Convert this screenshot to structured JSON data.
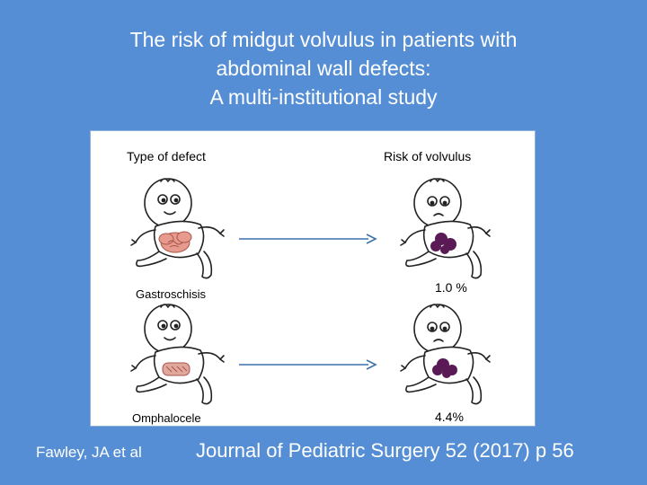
{
  "title": {
    "line1": "The risk of midgut volvulus in patients with",
    "line2": "abdominal wall defects:",
    "line3": "A multi-institutional study"
  },
  "panel": {
    "header_left": "Type of defect",
    "header_right": "Risk of volvulus",
    "rows": [
      {
        "defect": "Gastroschisis",
        "risk": "1.0 %"
      },
      {
        "defect": "Omphalocele",
        "risk": "4.4%"
      }
    ]
  },
  "citation": {
    "authors": "Fawley, JA et al",
    "journal": "Journal of Pediatric Surgery 52 (2017) p 56"
  },
  "colors": {
    "background": "#558ed5",
    "arrow": "#3f6fad",
    "gastroschisis_bowel": "#e79a8e",
    "omphalocele_sac": "#e0a89c",
    "volvulus_bowel": "#5a1a55"
  }
}
